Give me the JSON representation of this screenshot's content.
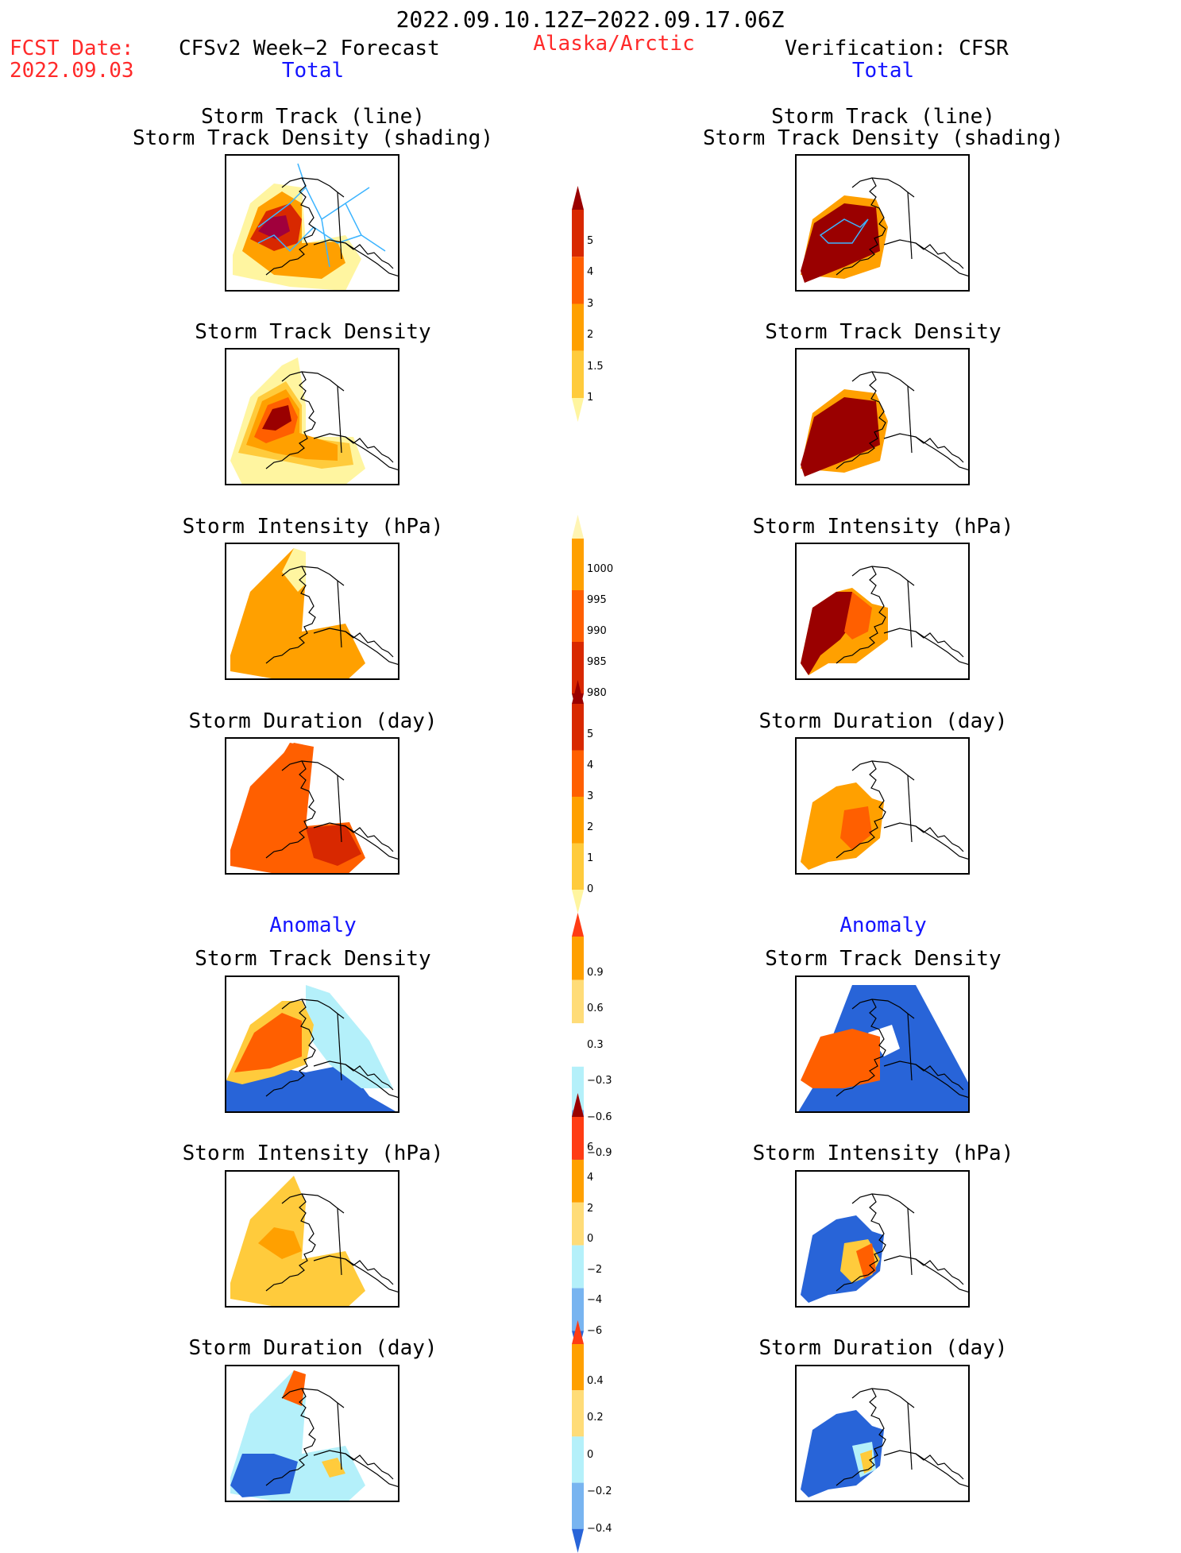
{
  "header": {
    "period": "2022.09.10.12Z−2022.09.17.06Z",
    "fcst_date_label": "FCST Date:",
    "fcst_date_value": "2022.09.03",
    "forecast_title": "CFSv2 Week−2 Forecast",
    "region": "Alaska/Arctic",
    "verification_title": "Verification: CFSR",
    "total_left": "Total",
    "total_right": "Total"
  },
  "sections": {
    "anomaly_left": "Anomaly",
    "anomaly_right": "Anomaly"
  },
  "rows": [
    {
      "title1": "Storm Track (line)",
      "title2": "Storm Track Density (shading)"
    },
    {
      "title1": "Storm Track Density"
    },
    {
      "title1": "Storm Intensity (hPa)"
    },
    {
      "title1": "Storm Duration (day)"
    },
    {
      "title1": "Storm Track Density"
    },
    {
      "title1": "Storm Intensity (hPa)"
    },
    {
      "title1": "Storm Duration (day)"
    }
  ],
  "colorbars": [
    {
      "name": "density-total",
      "labels": [
        "5",
        "4",
        "3",
        "2",
        "1.5",
        "1"
      ],
      "colors": [
        "#9a0000",
        "#d82800",
        "#ff5f00",
        "#ffa000",
        "#ffcb3c",
        "#fff5a0"
      ]
    },
    {
      "name": "intensity-total",
      "labels": [
        "1000",
        "995",
        "990",
        "985",
        "980"
      ],
      "colors": [
        "#fff5b4",
        "#ffa000",
        "#ff5f00",
        "#d82800",
        "#9a0000"
      ]
    },
    {
      "name": "duration-total",
      "labels": [
        "5",
        "4",
        "3",
        "2",
        "1",
        "0"
      ],
      "colors": [
        "#9a0000",
        "#d82800",
        "#ff5f00",
        "#ffa000",
        "#ffcb3c",
        "#fff5a0"
      ]
    },
    {
      "name": "density-anom",
      "labels": [
        "0.9",
        "0.6",
        "0.3",
        "−0.3",
        "−0.6",
        "−0.9"
      ],
      "colors": [
        "#ff3c14",
        "#ffa000",
        "#ffdc78",
        "#ffffff",
        "#b4f0fa",
        "#78b4f0",
        "#2864d8"
      ]
    },
    {
      "name": "intensity-anom",
      "labels": [
        "6",
        "4",
        "2",
        "0",
        "−2",
        "−4",
        "−6"
      ],
      "colors": [
        "#9a0000",
        "#ff3c14",
        "#ffa000",
        "#ffdc78",
        "#b4f0fa",
        "#78b4f0",
        "#2864d8"
      ]
    },
    {
      "name": "duration-anom",
      "labels": [
        "0.4",
        "0.2",
        "0",
        "−0.2",
        "−0.4"
      ],
      "colors": [
        "#ff3c14",
        "#ffa000",
        "#ffdc78",
        "#b4f0fa",
        "#78b4f0",
        "#2864d8"
      ]
    }
  ],
  "colors": {
    "dark_red": "#9a0000",
    "red": "#d82800",
    "orange_red": "#ff5f00",
    "orange": "#ffa000",
    "light_orange": "#ffcb3c",
    "pale_yellow": "#fff5a0",
    "light_blue": "#b4f0fa",
    "mid_blue": "#78b4f0",
    "blue": "#2864d8",
    "track_line": "#3cb4ff"
  }
}
